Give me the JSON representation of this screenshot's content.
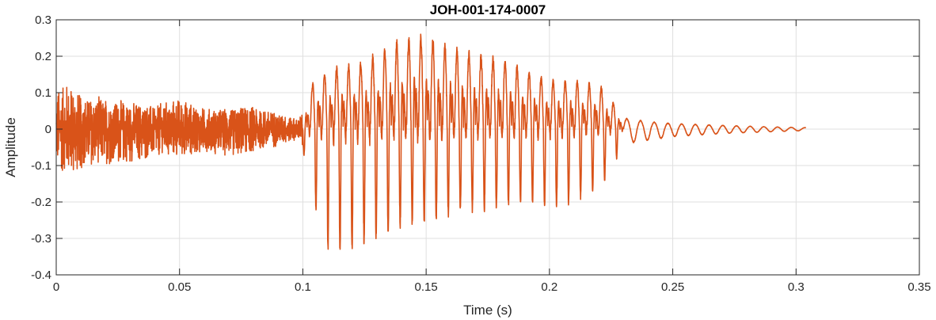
{
  "chart_data": {
    "type": "line",
    "title": "JOH-001-174-0007",
    "xlabel": "Time (s)",
    "ylabel": "Amplitude",
    "xlim": [
      0,
      0.35
    ],
    "ylim": [
      -0.4,
      0.3
    ],
    "xticks": [
      0,
      0.05,
      0.1,
      0.15,
      0.2,
      0.25,
      0.3,
      0.35
    ],
    "xtick_labels": [
      "0",
      "0.05",
      "0.1",
      "0.15",
      "0.2",
      "0.25",
      "0.3",
      "0.35"
    ],
    "yticks": [
      -0.4,
      -0.3,
      -0.2,
      -0.1,
      0,
      0.1,
      0.2,
      0.3
    ],
    "ytick_labels": [
      "-0.4",
      "-0.3",
      "-0.2",
      "-0.1",
      "0",
      "0.1",
      "0.2",
      "0.3"
    ],
    "grid": true,
    "series": [
      {
        "color": "#D95319",
        "segments": [
          {
            "kind": "noise",
            "t_start": 0.0,
            "t_end": 0.1,
            "max_amplitude": [
              0.14,
              -0.14
            ]
          },
          {
            "kind": "voiced",
            "t_start": 0.1,
            "t_end": 0.23,
            "peak_max": 0.25,
            "peak_min": -0.33,
            "peak_max_time": 0.15,
            "peak_min_time": 0.118
          },
          {
            "kind": "decay",
            "t_start": 0.23,
            "t_end": 0.304,
            "max_amplitude": [
              0.02,
              -0.02
            ]
          }
        ],
        "envelope": {
          "t": [
            0,
            0.005,
            0.01,
            0.02,
            0.03,
            0.04,
            0.05,
            0.06,
            0.07,
            0.08,
            0.09,
            0.098,
            0.101,
            0.105,
            0.11,
            0.115,
            0.12,
            0.13,
            0.14,
            0.15,
            0.16,
            0.17,
            0.18,
            0.19,
            0.2,
            0.21,
            0.22,
            0.225,
            0.23,
            0.24,
            0.25,
            0.27,
            0.29,
            0.304
          ],
          "upper": [
            0.12,
            0.14,
            0.1,
            0.09,
            0.08,
            0.07,
            0.09,
            0.06,
            0.06,
            0.07,
            0.05,
            0.03,
            0.07,
            0.14,
            0.15,
            0.17,
            0.17,
            0.2,
            0.24,
            0.25,
            0.22,
            0.2,
            0.19,
            0.16,
            0.13,
            0.13,
            0.12,
            0.08,
            0.03,
            0.02,
            0.015,
            0.01,
            0.006,
            0.004
          ],
          "lower": [
            -0.12,
            -0.14,
            -0.12,
            -0.11,
            -0.1,
            -0.09,
            -0.08,
            -0.07,
            -0.08,
            -0.07,
            -0.05,
            -0.03,
            -0.08,
            -0.22,
            -0.32,
            -0.33,
            -0.33,
            -0.29,
            -0.26,
            -0.25,
            -0.23,
            -0.22,
            -0.21,
            -0.2,
            -0.21,
            -0.2,
            -0.16,
            -0.11,
            -0.04,
            -0.03,
            -0.02,
            -0.012,
            -0.007,
            -0.004
          ]
        }
      }
    ]
  }
}
